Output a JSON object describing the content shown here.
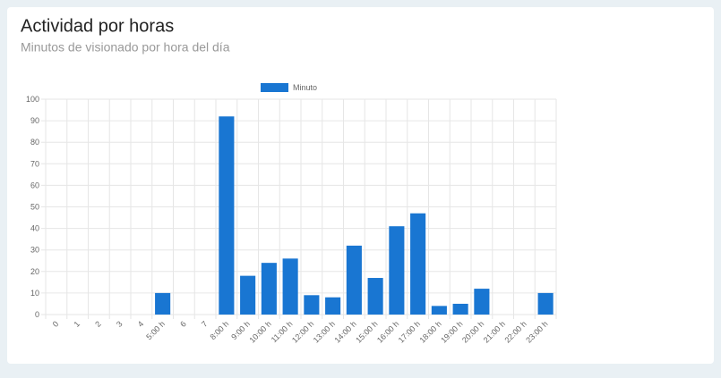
{
  "chart_data": {
    "type": "bar",
    "title": "Actividad por horas",
    "subtitle": "Minutos de visionado por hora del día",
    "categories": [
      "0",
      "1",
      "2",
      "3",
      "4",
      "5:00 h",
      "6",
      "7",
      "8:00 h",
      "9:00 h",
      "10:00 h",
      "11:00 h",
      "12:00 h",
      "13:00 h",
      "14:00 h",
      "15:00 h",
      "16:00 h",
      "17:00 h",
      "18:00 h",
      "19:00 h",
      "20:00 h",
      "21:00 h",
      "22:00 h",
      "23:00 h"
    ],
    "series": [
      {
        "name": "Minuto",
        "color": "#1976d2",
        "values": [
          0,
          0,
          0,
          0,
          0,
          10,
          0,
          0,
          92,
          18,
          24,
          26,
          9,
          8,
          32,
          17,
          41,
          47,
          4,
          5,
          12,
          0,
          0,
          10
        ]
      }
    ],
    "ylim": [
      0,
      100
    ],
    "yticks": [
      0,
      10,
      20,
      30,
      40,
      50,
      60,
      70,
      80,
      90,
      100
    ],
    "grid": true,
    "legend": "top"
  }
}
